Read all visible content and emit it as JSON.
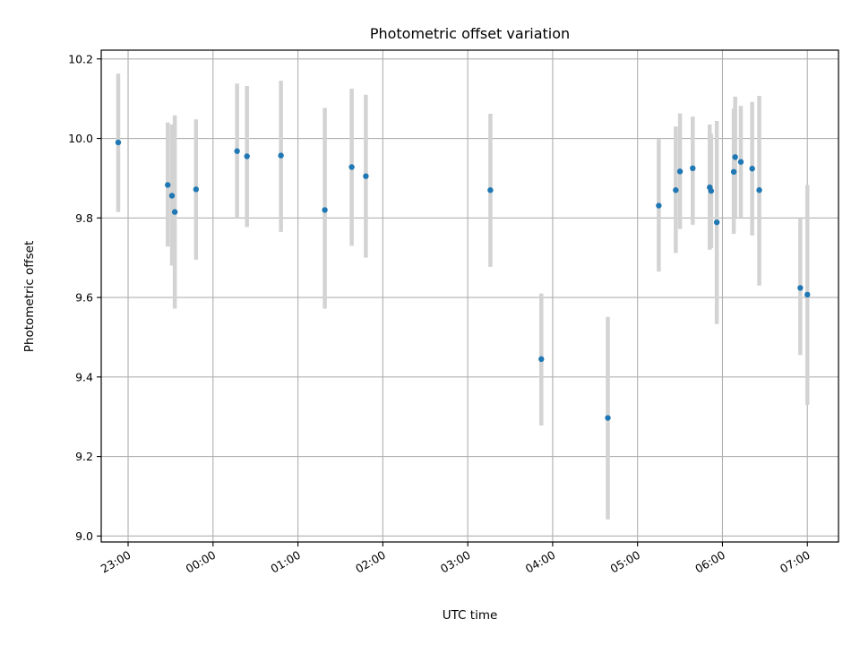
{
  "chart_data": {
    "type": "scatter",
    "title": "Photometric offset variation",
    "xlabel": "UTC time",
    "ylabel": "Photometric offset",
    "x_tick_labels": [
      "23:00",
      "00:00",
      "01:00",
      "02:00",
      "03:00",
      "04:00",
      "05:00",
      "06:00",
      "07:00"
    ],
    "y_tick_labels": [
      "9.0",
      "9.2",
      "9.4",
      "9.6",
      "9.8",
      "10.0",
      "10.2"
    ],
    "y_ticks": [
      9.0,
      9.2,
      9.4,
      9.6,
      9.8,
      10.0,
      10.2
    ],
    "x_ticks": [
      "23:00",
      "00:00",
      "01:00",
      "02:00",
      "03:00",
      "04:00",
      "05:00",
      "06:00",
      "07:00"
    ],
    "xlim": [
      "22:41",
      "07:22"
    ],
    "ylim": [
      8.985,
      10.222
    ],
    "grid": true,
    "marker_color": "#1f77b4",
    "errorbar_color": "#d3d3d3",
    "points": [
      {
        "x": "22:53",
        "y": 9.99,
        "low": 9.815,
        "high": 10.163
      },
      {
        "x": "23:28",
        "y": 9.883,
        "low": 9.728,
        "high": 10.04
      },
      {
        "x": "23:31",
        "y": 9.856,
        "low": 9.68,
        "high": 10.035
      },
      {
        "x": "23:33",
        "y": 9.815,
        "low": 9.572,
        "high": 10.058
      },
      {
        "x": "23:48",
        "y": 9.872,
        "low": 9.695,
        "high": 10.048
      },
      {
        "x": "00:17",
        "y": 9.968,
        "low": 9.8,
        "high": 10.138
      },
      {
        "x": "00:24",
        "y": 9.955,
        "low": 9.777,
        "high": 10.132
      },
      {
        "x": "00:48",
        "y": 9.957,
        "low": 9.765,
        "high": 10.145
      },
      {
        "x": "01:19",
        "y": 9.82,
        "low": 9.572,
        "high": 10.077
      },
      {
        "x": "01:38",
        "y": 9.928,
        "low": 9.73,
        "high": 10.125
      },
      {
        "x": "01:48",
        "y": 9.905,
        "low": 9.7,
        "high": 10.11
      },
      {
        "x": "03:16",
        "y": 9.87,
        "low": 9.677,
        "high": 10.062
      },
      {
        "x": "03:52",
        "y": 9.445,
        "low": 9.278,
        "high": 9.61
      },
      {
        "x": "04:39",
        "y": 9.297,
        "low": 9.042,
        "high": 9.551
      },
      {
        "x": "05:15",
        "y": 9.831,
        "low": 9.665,
        "high": 9.998
      },
      {
        "x": "05:27",
        "y": 9.87,
        "low": 9.712,
        "high": 10.03
      },
      {
        "x": "05:30",
        "y": 9.917,
        "low": 9.772,
        "high": 10.063
      },
      {
        "x": "05:39",
        "y": 9.925,
        "low": 9.783,
        "high": 10.055
      },
      {
        "x": "05:51",
        "y": 9.877,
        "low": 9.72,
        "high": 10.035
      },
      {
        "x": "05:52",
        "y": 9.868,
        "low": 9.724,
        "high": 10.012
      },
      {
        "x": "05:56",
        "y": 9.789,
        "low": 9.533,
        "high": 10.044
      },
      {
        "x": "06:08",
        "y": 9.916,
        "low": 9.76,
        "high": 10.075
      },
      {
        "x": "06:09",
        "y": 9.953,
        "low": 9.8,
        "high": 10.105
      },
      {
        "x": "06:13",
        "y": 9.941,
        "low": 9.8,
        "high": 10.082
      },
      {
        "x": "06:21",
        "y": 9.924,
        "low": 9.756,
        "high": 10.092
      },
      {
        "x": "06:26",
        "y": 9.87,
        "low": 9.63,
        "high": 10.107
      },
      {
        "x": "06:55",
        "y": 9.624,
        "low": 9.455,
        "high": 9.8
      },
      {
        "x": "07:00",
        "y": 9.607,
        "low": 9.33,
        "high": 9.883
      }
    ]
  }
}
